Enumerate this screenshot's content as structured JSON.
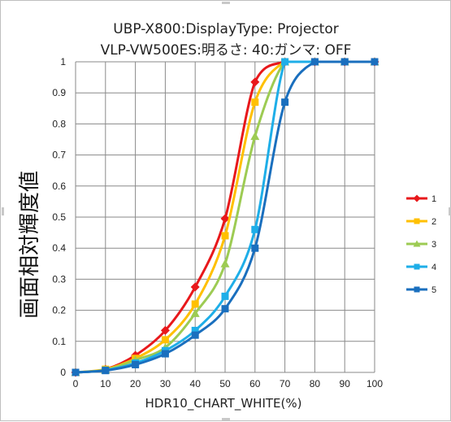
{
  "chart_data": {
    "type": "line",
    "title": "UBP-X800:DisplayType: Projector",
    "subtitle": "VLP-VW500ES:明るさ: 40:ガンマ: OFF",
    "xlabel": "HDR10_CHART_WHITE(%)",
    "ylabel": "画面相対輝度値",
    "xlim": [
      0,
      100
    ],
    "ylim": [
      0,
      1
    ],
    "xticks": [
      "0",
      "10",
      "20",
      "30",
      "40",
      "50",
      "60",
      "70",
      "80",
      "90",
      "100"
    ],
    "yticks": [
      "0",
      "0.1",
      "0.2",
      "0.3",
      "0.4",
      "0.5",
      "0.6",
      "0.7",
      "0.8",
      "0.9",
      "1"
    ],
    "grid": true,
    "legend_position": "right",
    "x": [
      0,
      10,
      20,
      30,
      40,
      50,
      60,
      70,
      80,
      90,
      100
    ],
    "series": [
      {
        "name": "1",
        "color": "#e8181b",
        "marker": "diamond",
        "values": [
          0,
          0.01,
          0.055,
          0.135,
          0.275,
          0.495,
          0.935,
          1,
          1,
          1,
          1
        ]
      },
      {
        "name": "2",
        "color": "#ffc000",
        "marker": "square",
        "values": [
          0,
          0.01,
          0.045,
          0.105,
          0.22,
          0.44,
          0.87,
          1,
          1,
          1,
          1
        ]
      },
      {
        "name": "3",
        "color": "#9dcb53",
        "marker": "triangle",
        "values": [
          0,
          0.008,
          0.04,
          0.08,
          0.19,
          0.35,
          0.76,
          1,
          1,
          1,
          1
        ]
      },
      {
        "name": "4",
        "color": "#1eaee8",
        "marker": "square",
        "values": [
          0,
          0.007,
          0.03,
          0.07,
          0.135,
          0.245,
          0.46,
          1,
          1,
          1,
          1
        ]
      },
      {
        "name": "5",
        "color": "#1a6fbe",
        "marker": "square",
        "values": [
          0,
          0.006,
          0.025,
          0.06,
          0.12,
          0.205,
          0.4,
          0.87,
          1,
          1,
          1
        ]
      }
    ]
  }
}
